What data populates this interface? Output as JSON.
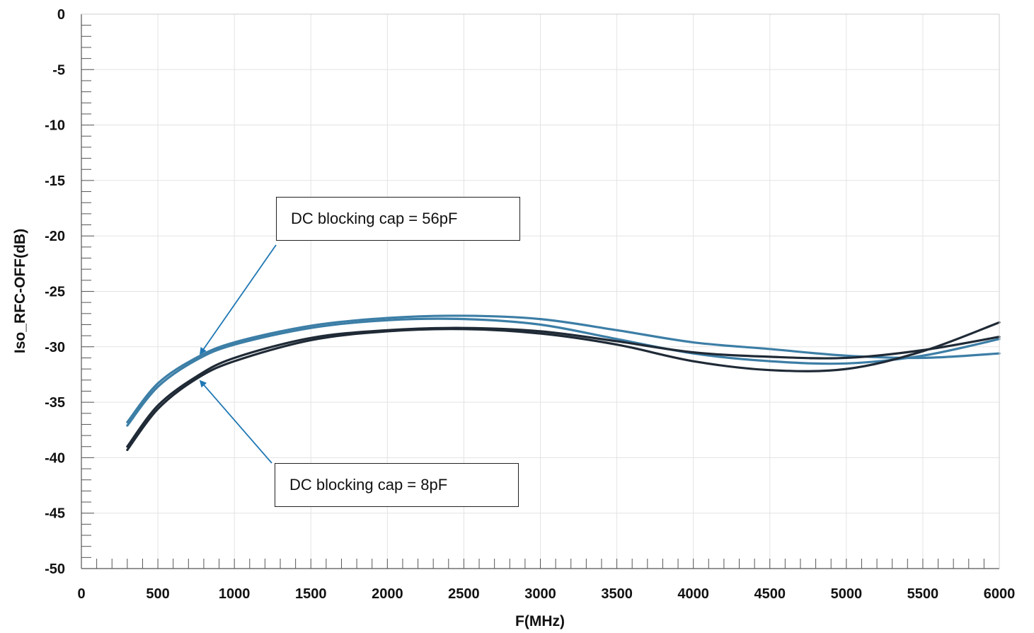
{
  "chart_data": {
    "type": "line",
    "title": "",
    "xlabel": "F(MHz)",
    "ylabel": "Iso_RFC-OFF(dB)",
    "xlim": [
      0,
      6000
    ],
    "ylim": [
      -50,
      0
    ],
    "x_ticks": [
      0,
      500,
      1000,
      1500,
      2000,
      2500,
      3000,
      3500,
      4000,
      4500,
      5000,
      5500,
      6000
    ],
    "x_tick_labels": [
      "0",
      "500",
      "1000",
      "1500",
      "2000",
      "2500",
      "3000",
      "3500",
      "4000",
      "4500",
      "5000",
      "5500",
      "6000"
    ],
    "y_ticks": [
      0,
      -5,
      -10,
      -15,
      -20,
      -25,
      -30,
      -35,
      -40,
      -45,
      -50
    ],
    "y_tick_labels": [
      "0",
      "-5",
      "-10",
      "-15",
      "-20",
      "-25",
      "-30",
      "-35",
      "-40",
      "-45",
      "-50"
    ],
    "grid": true,
    "series": [
      {
        "color": "#3c7ea6",
        "x": [
          300,
          500,
          750,
          1000,
          1500,
          2000,
          2500,
          3000,
          3500,
          4000,
          4500,
          5000,
          5500,
          6000
        ],
        "y": [
          -36.8,
          -33.3,
          -31.0,
          -29.6,
          -28.1,
          -27.4,
          -27.2,
          -27.5,
          -28.5,
          -29.6,
          -30.2,
          -30.8,
          -31.0,
          -30.6
        ]
      },
      {
        "color": "#3c7ea6",
        "x": [
          300,
          500,
          750,
          1000,
          1500,
          2000,
          2500,
          3000,
          3500,
          4000,
          4500,
          5000,
          5500,
          6000
        ],
        "y": [
          -37.1,
          -33.6,
          -31.2,
          -29.8,
          -28.3,
          -27.6,
          -27.5,
          -28.0,
          -29.3,
          -30.6,
          -31.3,
          -31.5,
          -30.8,
          -29.3
        ]
      },
      {
        "color": "#1f2a36",
        "x": [
          300,
          500,
          750,
          1000,
          1500,
          2000,
          2500,
          3000,
          3500,
          4000,
          4500,
          5000,
          5500,
          6000
        ],
        "y": [
          -39.0,
          -35.3,
          -32.7,
          -31.0,
          -29.2,
          -28.5,
          -28.3,
          -28.6,
          -29.5,
          -30.5,
          -30.9,
          -31.0,
          -30.3,
          -29.1
        ]
      },
      {
        "color": "#1f2a36",
        "x": [
          300,
          500,
          750,
          1000,
          1500,
          2000,
          2500,
          3000,
          3500,
          4000,
          4500,
          5000,
          5500,
          6000
        ],
        "y": [
          -39.3,
          -35.6,
          -32.9,
          -31.3,
          -29.4,
          -28.6,
          -28.4,
          -28.8,
          -29.8,
          -31.3,
          -32.1,
          -32.0,
          -30.4,
          -27.8
        ]
      }
    ],
    "annotations": [
      {
        "text": "DC blocking cap = 56pF",
        "target_x": 750,
        "target_y": -31.0
      },
      {
        "text": "DC blocking cap = 8pF",
        "target_x": 750,
        "target_y": -32.7
      }
    ],
    "annotation_arrow_color": "#1f77b4"
  }
}
